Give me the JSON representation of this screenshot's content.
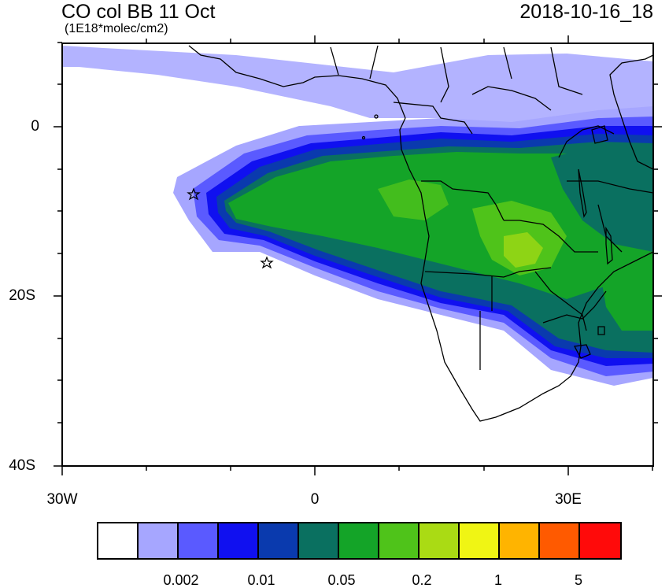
{
  "header": {
    "title": "CO col BB 11 Oct",
    "units": "(1E18*molec/cm2)",
    "datetime": "2018-10-16_18"
  },
  "axes": {
    "y_labels": [
      "0",
      "20S",
      "40S"
    ],
    "x_labels": [
      "30W",
      "0",
      "30E"
    ]
  },
  "colorbar": {
    "colors": [
      "#ffffff",
      "#a6a6ff",
      "#5a5aff",
      "#1010f0",
      "#0a3aae",
      "#0a7060",
      "#14a428",
      "#4fc31a",
      "#aadb14",
      "#f0f514",
      "#ffb400",
      "#ff5a00",
      "#ff0a0a"
    ],
    "labels": [
      "0.002",
      "0.01",
      "0.05",
      "0.2",
      "1",
      "5"
    ]
  },
  "map": {
    "projection": "lon-lat",
    "lon_range": [
      -30,
      40
    ],
    "lat_range": [
      -40,
      10
    ],
    "variable": "CO column from biomass burning",
    "markers": [
      "star",
      "star"
    ]
  }
}
